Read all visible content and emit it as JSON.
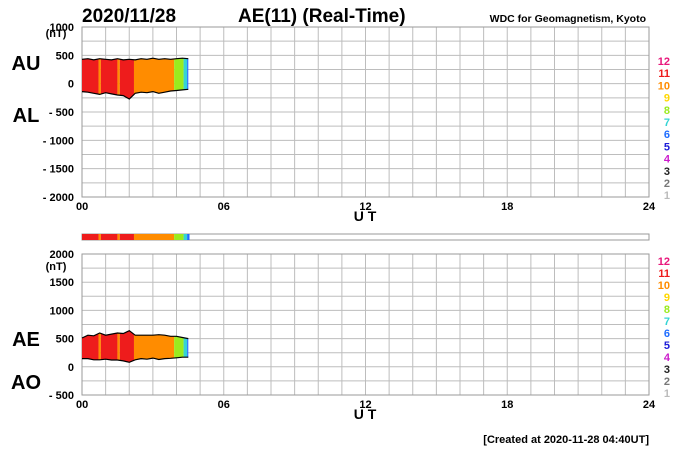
{
  "header": {
    "date": "2020/11/28",
    "title": "AE(11) (Real-Time)",
    "source": "WDC for Geomagnetism, Kyoto"
  },
  "footer": {
    "created": "[Created at 2020-11-28 04:40UT]"
  },
  "legend": {
    "entries": [
      {
        "label": "12",
        "color": "#e8177b"
      },
      {
        "label": "11",
        "color": "#ee1c1c"
      },
      {
        "label": "10",
        "color": "#ff8c00"
      },
      {
        "label": "9",
        "color": "#ffd700"
      },
      {
        "label": "8",
        "color": "#9aeb1e"
      },
      {
        "label": "7",
        "color": "#35d4d4"
      },
      {
        "label": "6",
        "color": "#1e6cff"
      },
      {
        "label": "5",
        "color": "#1c1cd8"
      },
      {
        "label": "4",
        "color": "#cc1ccc"
      },
      {
        "label": "3",
        "color": "#222222"
      },
      {
        "label": "2",
        "color": "#777777"
      },
      {
        "label": "1",
        "color": "#bbbbbb"
      }
    ]
  },
  "chart_data": [
    {
      "type": "area",
      "panel": "AU/AL",
      "labels": {
        "upper": "AU",
        "lower": "AL"
      },
      "ylabel_unit": "(nT)",
      "xlabel": "U T",
      "xlim": [
        0,
        24
      ],
      "x_ticks": [
        "00",
        "06",
        "12",
        "18",
        "24"
      ],
      "ylim": [
        -2000,
        1000
      ],
      "y_ticks": [
        "1000",
        "500",
        "0",
        "- 500",
        "- 1000",
        "- 1500",
        "- 2000"
      ],
      "grid": true,
      "series": [
        {
          "name": "AU",
          "x": [
            0,
            0.25,
            0.5,
            0.75,
            1.0,
            1.25,
            1.5,
            1.75,
            2.0,
            2.25,
            2.5,
            2.75,
            3.0,
            3.25,
            3.5,
            3.75,
            4.0,
            4.25,
            4.5
          ],
          "values": [
            430,
            440,
            420,
            440,
            430,
            420,
            440,
            420,
            430,
            420,
            440,
            430,
            450,
            430,
            440,
            430,
            440,
            450,
            440
          ]
        },
        {
          "name": "AL",
          "x": [
            0,
            0.25,
            0.5,
            0.75,
            1.0,
            1.25,
            1.5,
            1.75,
            2.0,
            2.25,
            2.5,
            2.75,
            3.0,
            3.25,
            3.5,
            3.75,
            4.0,
            4.25,
            4.5
          ],
          "values": [
            -140,
            -150,
            -170,
            -190,
            -160,
            -180,
            -200,
            -210,
            -270,
            -170,
            -150,
            -160,
            -140,
            -170,
            -150,
            -130,
            -120,
            -110,
            -100
          ]
        }
      ]
    },
    {
      "type": "area",
      "panel": "AE/AO",
      "labels": {
        "upper": "AE",
        "lower": "AO"
      },
      "ylabel_unit": "(nT)",
      "xlabel": "U T",
      "xlim": [
        0,
        24
      ],
      "x_ticks": [
        "00",
        "06",
        "12",
        "18",
        "24"
      ],
      "ylim": [
        -500,
        2000
      ],
      "y_ticks": [
        "2000",
        "1500",
        "1000",
        "500",
        "0",
        "- 500"
      ],
      "grid": true,
      "series": [
        {
          "name": "AE",
          "x": [
            0,
            0.25,
            0.5,
            0.75,
            1.0,
            1.25,
            1.5,
            1.75,
            2.0,
            2.25,
            2.5,
            2.75,
            3.0,
            3.25,
            3.5,
            3.75,
            4.0,
            4.25,
            4.5
          ],
          "values": [
            510,
            560,
            550,
            600,
            560,
            580,
            600,
            590,
            640,
            560,
            560,
            560,
            560,
            570,
            560,
            540,
            540,
            520,
            500
          ]
        },
        {
          "name": "AO",
          "x": [
            0,
            0.25,
            0.5,
            0.75,
            1.0,
            1.25,
            1.5,
            1.75,
            2.0,
            2.25,
            2.5,
            2.75,
            3.0,
            3.25,
            3.5,
            3.75,
            4.0,
            4.25,
            4.5
          ],
          "values": [
            145,
            145,
            125,
            125,
            135,
            120,
            120,
            105,
            80,
            125,
            145,
            135,
            155,
            130,
            145,
            150,
            160,
            170,
            170
          ]
        }
      ]
    }
  ],
  "activity_segments": [
    {
      "x0": 0.0,
      "x1": 0.7,
      "level": "11"
    },
    {
      "x0": 0.7,
      "x1": 0.8,
      "level": "10"
    },
    {
      "x0": 0.8,
      "x1": 1.5,
      "level": "11"
    },
    {
      "x0": 1.5,
      "x1": 1.6,
      "level": "10"
    },
    {
      "x0": 1.6,
      "x1": 2.2,
      "level": "11"
    },
    {
      "x0": 2.2,
      "x1": 3.9,
      "level": "10"
    },
    {
      "x0": 3.9,
      "x1": 4.3,
      "level": "8"
    },
    {
      "x0": 4.3,
      "x1": 4.45,
      "level": "7"
    },
    {
      "x0": 4.45,
      "x1": 4.55,
      "level": "6"
    }
  ]
}
